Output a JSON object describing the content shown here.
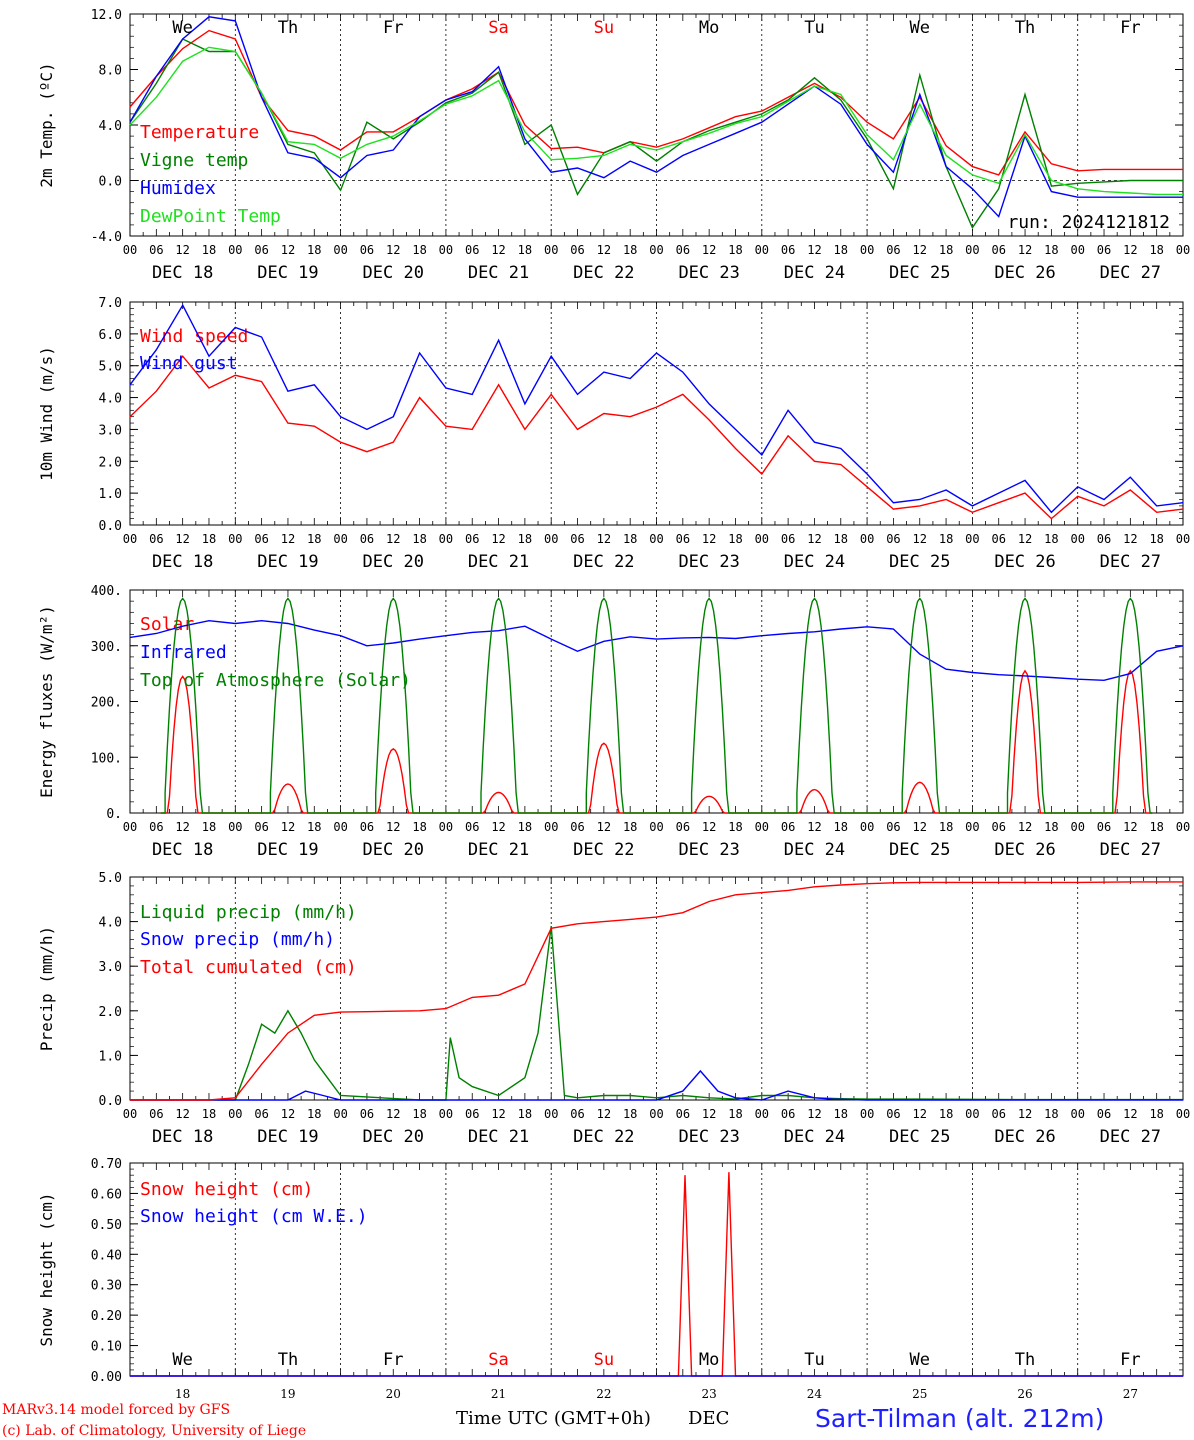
{
  "page": {
    "footer": {
      "model_line": "MARv3.14 model forced by GFS",
      "credit_line": "(c) Lab. of Climatology, University of Liege",
      "time_axis_label": "Time UTC (GMT+0h)",
      "month_label": "DEC",
      "station": "Sart-Tilman (alt. 212m)"
    },
    "colors": {
      "red": "#ff0000",
      "green": "#008000",
      "blue": "#0000ff",
      "lightgreen": "#20e020",
      "weekend": "#ff0000",
      "weekday": "#000000"
    }
  },
  "chart_data": [
    {
      "type": "line",
      "ylabel": "2m Temp. (ºC)",
      "ylim": [
        -4,
        12
      ],
      "yticks": [
        "-4.0",
        "0.0",
        "4.0",
        "8.0",
        "12.0"
      ],
      "ytick_values": [
        -4,
        0,
        4,
        8,
        12
      ],
      "hline": 0,
      "annotation": "run: 2024121812",
      "day_labels": [
        "We",
        "Th",
        "Fr",
        "Sa",
        "Su",
        "Mo",
        "Tu",
        "We",
        "Th",
        "Fr"
      ],
      "x_days": [
        18,
        19,
        20,
        21,
        22,
        23,
        24,
        25,
        26,
        27
      ],
      "series": [
        {
          "name": "Temperature",
          "color": "#ff0000",
          "x": [
            0,
            6,
            12,
            18,
            24,
            30,
            36,
            42,
            48,
            54,
            60,
            66,
            72,
            78,
            84,
            90,
            96,
            102,
            108,
            114,
            120,
            126,
            132,
            138,
            144,
            150,
            156,
            162,
            168,
            174,
            180,
            186,
            192,
            198,
            204,
            210,
            216,
            222,
            228,
            234,
            240
          ],
          "values": [
            5.3,
            7.5,
            9.5,
            10.8,
            10.2,
            6.0,
            3.6,
            3.2,
            2.2,
            3.5,
            3.5,
            4.6,
            5.8,
            6.6,
            7.8,
            4.0,
            2.3,
            2.4,
            2.0,
            2.8,
            2.4,
            3.0,
            3.8,
            4.6,
            5.0,
            6.0,
            7.0,
            6.0,
            4.2,
            3.0,
            6.0,
            2.5,
            1.0,
            0.4,
            3.5,
            1.2,
            0.7,
            0.8,
            0.8,
            0.8,
            0.8
          ]
        },
        {
          "name": "Vigne temp",
          "color": "#008000",
          "x": [
            0,
            6,
            12,
            18,
            24,
            30,
            36,
            42,
            48,
            54,
            60,
            66,
            72,
            78,
            84,
            90,
            96,
            102,
            108,
            114,
            120,
            126,
            132,
            138,
            144,
            150,
            156,
            162,
            168,
            174,
            180,
            186,
            192,
            198,
            204,
            210,
            216,
            222,
            228,
            234,
            240
          ],
          "values": [
            4.2,
            7.0,
            10.2,
            9.3,
            9.3,
            6.3,
            2.6,
            2.0,
            -0.7,
            4.2,
            3.0,
            4.2,
            5.6,
            6.3,
            7.8,
            2.6,
            4.0,
            -1.0,
            2.0,
            2.8,
            1.4,
            2.8,
            3.6,
            4.2,
            4.8,
            5.8,
            7.4,
            5.8,
            3.0,
            -0.6,
            7.6,
            1.0,
            -3.4,
            -0.6,
            6.2,
            -0.4,
            -0.2,
            -0.1,
            0.0,
            0.0,
            0.0
          ]
        },
        {
          "name": "Humidex",
          "color": "#0000ff",
          "x": [
            0,
            6,
            12,
            18,
            24,
            30,
            36,
            42,
            48,
            54,
            60,
            66,
            72,
            78,
            84,
            90,
            96,
            102,
            108,
            114,
            120,
            126,
            132,
            138,
            144,
            150,
            156,
            162,
            168,
            174,
            180,
            186,
            192,
            198,
            204,
            210,
            216,
            222,
            228,
            234,
            240
          ],
          "values": [
            4.2,
            7.5,
            10.2,
            11.8,
            11.5,
            6.0,
            2.0,
            1.6,
            0.2,
            1.8,
            2.2,
            4.6,
            5.8,
            6.4,
            8.2,
            3.0,
            0.6,
            0.9,
            0.2,
            1.4,
            0.6,
            1.8,
            2.6,
            3.4,
            4.2,
            5.5,
            6.8,
            5.5,
            2.6,
            0.6,
            6.2,
            1.0,
            -0.6,
            -2.6,
            3.2,
            -0.8,
            -1.2,
            -1.2,
            -1.2,
            -1.2,
            -1.2
          ]
        },
        {
          "name": "DewPoint Temp",
          "color": "#20e020",
          "x": [
            0,
            6,
            12,
            18,
            24,
            30,
            36,
            42,
            48,
            54,
            60,
            66,
            72,
            78,
            84,
            90,
            96,
            102,
            108,
            114,
            120,
            126,
            132,
            138,
            144,
            150,
            156,
            162,
            168,
            174,
            180,
            186,
            192,
            198,
            204,
            210,
            216,
            222,
            228,
            234,
            240
          ],
          "values": [
            4.0,
            6.0,
            8.6,
            9.6,
            9.3,
            6.3,
            2.8,
            2.6,
            1.6,
            2.6,
            3.2,
            4.3,
            5.5,
            6.1,
            7.2,
            3.5,
            1.5,
            1.6,
            1.8,
            2.6,
            2.2,
            2.8,
            3.4,
            4.1,
            4.6,
            5.7,
            6.8,
            6.2,
            3.3,
            1.5,
            5.5,
            1.8,
            0.4,
            -0.2,
            3.3,
            0.0,
            -0.6,
            -0.8,
            -0.9,
            -1.0,
            -1.0
          ]
        }
      ]
    },
    {
      "type": "line",
      "ylabel": "10m Wind (m/s)",
      "ylim": [
        0,
        7
      ],
      "yticks": [
        "0.0",
        "1.0",
        "2.0",
        "3.0",
        "4.0",
        "5.0",
        "6.0",
        "7.0"
      ],
      "ytick_values": [
        0,
        1,
        2,
        3,
        4,
        5,
        6,
        7
      ],
      "hline": 5,
      "series": [
        {
          "name": "Wind speed",
          "color": "#ff0000",
          "x": [
            0,
            6,
            12,
            18,
            24,
            30,
            36,
            42,
            48,
            54,
            60,
            66,
            72,
            78,
            84,
            90,
            96,
            102,
            108,
            114,
            120,
            126,
            132,
            138,
            144,
            150,
            156,
            162,
            168,
            174,
            180,
            186,
            192,
            198,
            204,
            210,
            216,
            222,
            228,
            234,
            240
          ],
          "values": [
            3.4,
            4.2,
            5.3,
            4.3,
            4.7,
            4.5,
            3.2,
            3.1,
            2.6,
            2.3,
            2.6,
            4.0,
            3.1,
            3.0,
            4.4,
            3.0,
            4.1,
            3.0,
            3.5,
            3.4,
            3.7,
            4.1,
            3.3,
            2.4,
            1.6,
            2.8,
            2.0,
            1.9,
            1.2,
            0.5,
            0.6,
            0.8,
            0.4,
            0.7,
            1.0,
            0.2,
            0.9,
            0.6,
            1.1,
            0.4,
            0.5
          ]
        },
        {
          "name": "Wind gust",
          "color": "#0000ff",
          "x": [
            0,
            6,
            12,
            18,
            24,
            30,
            36,
            42,
            48,
            54,
            60,
            66,
            72,
            78,
            84,
            90,
            96,
            102,
            108,
            114,
            120,
            126,
            132,
            138,
            144,
            150,
            156,
            162,
            168,
            174,
            180,
            186,
            192,
            198,
            204,
            210,
            216,
            222,
            228,
            234,
            240
          ],
          "values": [
            4.4,
            5.5,
            6.9,
            5.3,
            6.2,
            5.9,
            4.2,
            4.4,
            3.4,
            3.0,
            3.4,
            5.4,
            4.3,
            4.1,
            5.8,
            3.8,
            5.3,
            4.1,
            4.8,
            4.6,
            5.4,
            4.8,
            3.8,
            3.0,
            2.2,
            3.6,
            2.6,
            2.4,
            1.6,
            0.7,
            0.8,
            1.1,
            0.6,
            1.0,
            1.4,
            0.4,
            1.2,
            0.8,
            1.5,
            0.6,
            0.7
          ]
        }
      ]
    },
    {
      "type": "line",
      "ylabel": "Energy fluxes (W/m²)",
      "ylim": [
        0,
        400
      ],
      "yticks": [
        "0.",
        "100.",
        "200.",
        "300.",
        "400."
      ],
      "ytick_values": [
        0,
        100,
        200,
        300,
        400
      ],
      "series": [
        {
          "name": "Solar",
          "color": "#ff0000",
          "peaks": [
            245,
            52,
            115,
            37,
            125,
            30,
            42,
            55,
            255,
            255
          ]
        },
        {
          "name": "Infrared",
          "color": "#0000ff",
          "x": [
            0,
            6,
            12,
            18,
            24,
            30,
            36,
            42,
            48,
            54,
            60,
            66,
            72,
            78,
            84,
            90,
            96,
            102,
            108,
            114,
            120,
            126,
            132,
            138,
            144,
            150,
            156,
            162,
            168,
            174,
            180,
            186,
            192,
            198,
            204,
            210,
            216,
            222,
            228,
            234,
            240
          ],
          "values": [
            315,
            322,
            335,
            345,
            340,
            345,
            340,
            328,
            318,
            300,
            305,
            312,
            318,
            324,
            327,
            335,
            312,
            290,
            308,
            316,
            312,
            314,
            315,
            313,
            318,
            322,
            325,
            330,
            334,
            330,
            285,
            258,
            252,
            248,
            246,
            243,
            240,
            238,
            250,
            290,
            300
          ]
        },
        {
          "name": "Top of Atmosphere (Solar)",
          "color": "#008000",
          "peaks": [
            385,
            385,
            385,
            385,
            385,
            385,
            385,
            385,
            385,
            385
          ]
        }
      ]
    },
    {
      "type": "line",
      "ylabel": "Precip (mm/h)",
      "ylim": [
        0,
        5
      ],
      "yticks": [
        "0.0",
        "1.0",
        "2.0",
        "3.0",
        "4.0",
        "5.0"
      ],
      "ytick_values": [
        0,
        1,
        2,
        3,
        4,
        5
      ],
      "series": [
        {
          "name": "Liquid precip (mm/h)",
          "color": "#008000",
          "x": [
            0,
            18,
            24,
            27,
            30,
            33,
            36,
            39,
            42,
            45,
            48,
            66,
            72,
            73,
            75,
            78,
            84,
            90,
            93,
            96,
            99,
            102,
            108,
            114,
            120,
            126,
            132,
            138,
            144,
            150,
            156,
            162,
            168,
            180,
            204,
            216,
            228,
            240
          ],
          "values": [
            0,
            0,
            0,
            0.8,
            1.7,
            1.5,
            2.0,
            1.5,
            0.9,
            0.5,
            0.1,
            0,
            0,
            1.4,
            0.5,
            0.3,
            0.1,
            0.5,
            1.5,
            3.9,
            0.1,
            0.05,
            0.1,
            0.1,
            0.05,
            0.1,
            0.05,
            0.02,
            0.1,
            0.1,
            0.05,
            0.03,
            0.02,
            0.02,
            0.01,
            0.01,
            0.01,
            0.01
          ]
        },
        {
          "name": "Snow precip (mm/h)",
          "color": "#0000ff",
          "x": [
            0,
            36,
            40,
            44,
            48,
            120,
            126,
            130,
            134,
            138,
            144,
            150,
            156,
            160,
            168,
            240
          ],
          "values": [
            0,
            0,
            0.2,
            0.1,
            0,
            0,
            0.2,
            0.65,
            0.2,
            0.05,
            0,
            0.2,
            0.05,
            0.02,
            0,
            0
          ]
        },
        {
          "name": "Total cumulated (cm)",
          "color": "#ff0000",
          "x": [
            0,
            18,
            24,
            30,
            36,
            42,
            48,
            54,
            60,
            66,
            72,
            78,
            84,
            90,
            96,
            102,
            108,
            114,
            120,
            126,
            132,
            138,
            144,
            150,
            156,
            162,
            168,
            174,
            180,
            192,
            204,
            216,
            228,
            240
          ],
          "values": [
            0,
            0,
            0.05,
            0.8,
            1.5,
            1.9,
            1.97,
            1.98,
            1.99,
            2.0,
            2.05,
            2.3,
            2.35,
            2.6,
            3.85,
            3.95,
            4.0,
            4.05,
            4.1,
            4.2,
            4.45,
            4.6,
            4.65,
            4.7,
            4.78,
            4.82,
            4.85,
            4.87,
            4.88,
            4.88,
            4.88,
            4.88,
            4.89,
            4.89
          ]
        }
      ]
    },
    {
      "type": "line",
      "ylabel": "Snow height (cm)",
      "ylim": [
        0,
        0.7
      ],
      "yticks": [
        "0.00",
        "0.10",
        "0.20",
        "0.30",
        "0.40",
        "0.50",
        "0.60",
        "0.70"
      ],
      "ytick_values": [
        0,
        0.1,
        0.2,
        0.3,
        0.4,
        0.5,
        0.6,
        0.7
      ],
      "day_labels": [
        "We",
        "Th",
        "Fr",
        "Sa",
        "Su",
        "Mo",
        "Tu",
        "We",
        "Th",
        "Fr"
      ],
      "day_numbers": [
        "18",
        "19",
        "20",
        "21",
        "22",
        "23",
        "24",
        "25",
        "26",
        "27"
      ],
      "series": [
        {
          "name": "Snow height (cm)",
          "color": "#ff0000",
          "x": [
            0,
            125,
            126.5,
            128,
            135,
            136.5,
            138,
            240
          ],
          "values": [
            0,
            0,
            0.66,
            0,
            0,
            0.67,
            0,
            0
          ]
        },
        {
          "name": "Snow height (cm W.E.)",
          "color": "#0000ff",
          "x": [
            0,
            240
          ],
          "values": [
            0,
            0
          ]
        }
      ]
    }
  ],
  "axis": {
    "hour_labels": [
      "00",
      "06",
      "12",
      "18"
    ],
    "end_label": "00",
    "date_labels": [
      "DEC 18",
      "DEC 19",
      "DEC 20",
      "DEC 21",
      "DEC 22",
      "DEC 23",
      "DEC 24",
      "DEC 25",
      "DEC 26",
      "DEC 27"
    ],
    "weekend_days": [
      "Sa",
      "Su"
    ]
  }
}
